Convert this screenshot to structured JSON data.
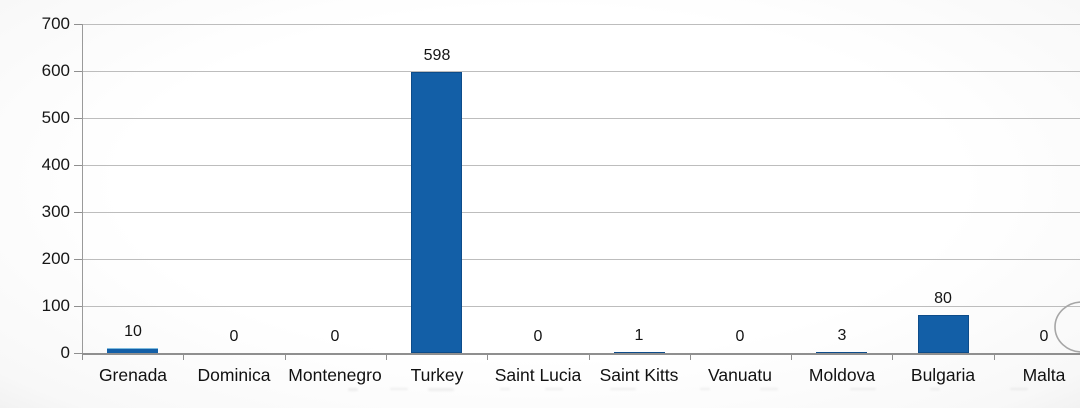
{
  "chart_data": {
    "type": "bar",
    "title": "",
    "xlabel": "",
    "ylabel": "",
    "categories": [
      "Grenada",
      "Dominica",
      "Montenegro",
      "Turkey",
      "Saint Lucia",
      "Saint Kitts",
      "Vanuatu",
      "Moldova",
      "Bulgaria",
      "Malta"
    ],
    "values": [
      10,
      0,
      0,
      598,
      0,
      1,
      0,
      3,
      80,
      0
    ],
    "data_labels": [
      "10",
      "0",
      "0",
      "598",
      "0",
      "1",
      "0",
      "3",
      "80",
      "0"
    ],
    "ylim": [
      0,
      700
    ],
    "yticks": [
      0,
      100,
      200,
      300,
      400,
      500,
      600,
      700
    ],
    "grid": true,
    "legend": "none",
    "colors": {
      "bar_fill": "#135fa7",
      "bar_border": "#0d4c8a",
      "bar_top_highlight": "#7fbcdf",
      "gridline": "#bdbdbd",
      "axis": "#8f8f8f",
      "text": "#161616",
      "background": "#fcfcfc"
    },
    "annotations": {
      "right_edge_circle": "faint hand-drawn circle outline partially cut off at right edge near Malta value 0"
    }
  }
}
